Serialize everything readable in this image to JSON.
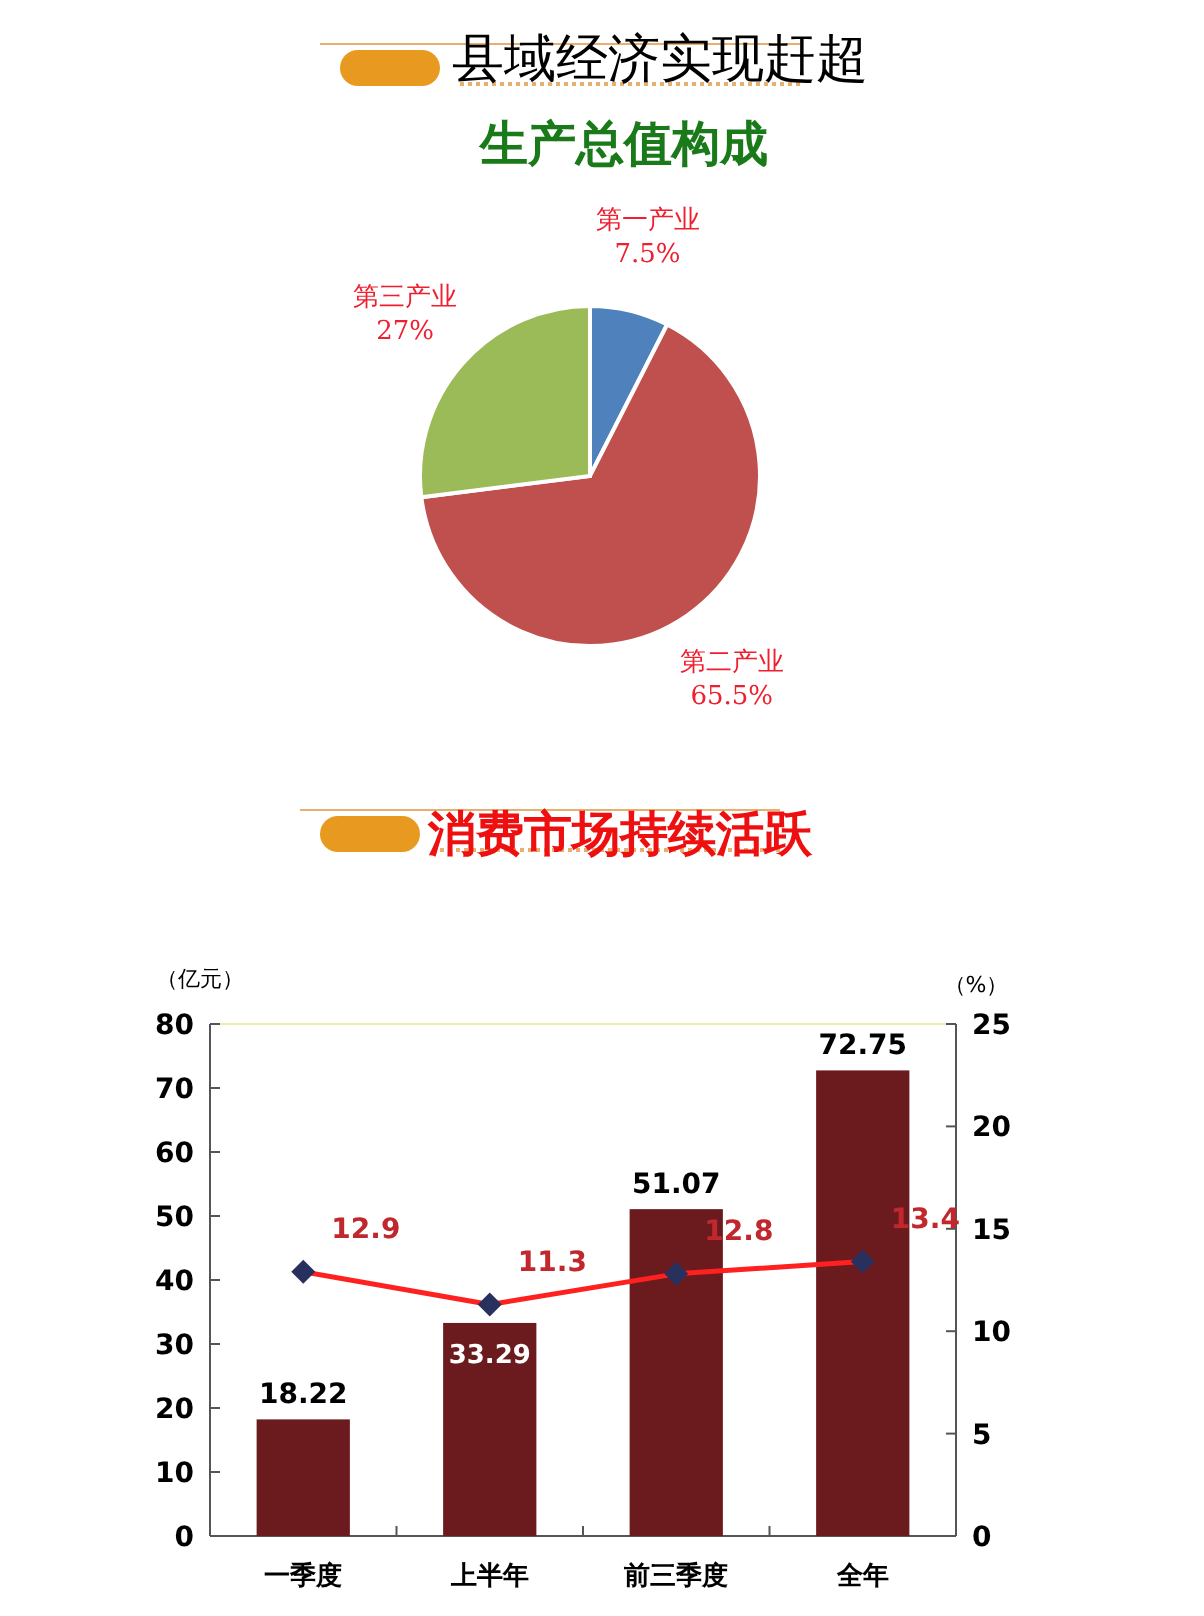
{
  "chart_data": [
    {
      "type": "pie",
      "title": "县域经济实现赶超",
      "subtitle": "生产总值构成",
      "categories": [
        "第一产业",
        "第二产业",
        "第三产业"
      ],
      "values": [
        7.5,
        65.5,
        27
      ],
      "colors": [
        "#4f81bd",
        "#c0504d",
        "#9bbb59"
      ],
      "value_labels": [
        "7.5%",
        "65.5%",
        "27%"
      ]
    },
    {
      "type": "bar",
      "title": "消费市场持续活跃",
      "ylabel": "（亿元）",
      "y2label": "（%）",
      "categories": [
        "一季度",
        "上半年",
        "前三季度",
        "全年"
      ],
      "ylim": [
        0,
        80
      ],
      "yticks": [
        0,
        10,
        20,
        30,
        40,
        50,
        60,
        70,
        80
      ],
      "y2lim": [
        0,
        25
      ],
      "y2ticks": [
        0,
        5,
        10,
        15,
        20,
        25
      ],
      "grid": false,
      "data_labels": true,
      "series": [
        {
          "type": "bar",
          "color": "#6b1a1e",
          "values": [
            18.22,
            33.29,
            51.07,
            72.75
          ]
        },
        {
          "type": "line",
          "axis": "y2",
          "color": "#ff2020",
          "marker": "diamond",
          "values": [
            12.9,
            11.3,
            12.8,
            13.4
          ]
        }
      ]
    }
  ]
}
